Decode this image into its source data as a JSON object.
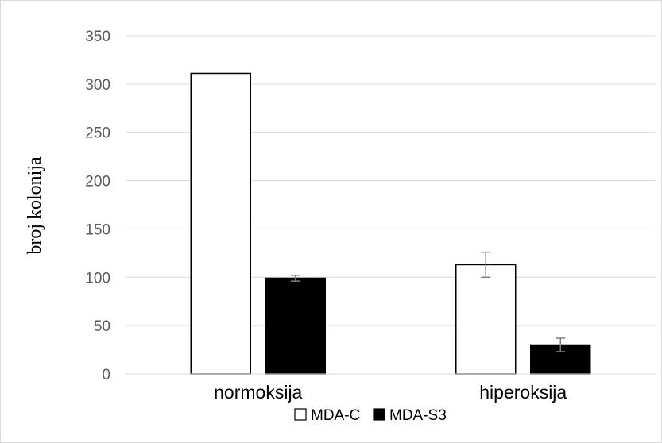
{
  "chart_data": {
    "type": "bar",
    "title": "",
    "xlabel": "",
    "ylabel": "broj kolonija",
    "ylim": [
      0,
      350
    ],
    "yticks": [
      0,
      50,
      100,
      150,
      200,
      250,
      300,
      350
    ],
    "grid": true,
    "legend_position": "bottom",
    "categories": [
      "normoksija",
      "hiperoksija"
    ],
    "series": [
      {
        "name": "MDA-C",
        "fill": "#ffffff",
        "stroke": "#000000",
        "values": [
          311,
          113
        ],
        "errors": [
          0,
          13
        ]
      },
      {
        "name": "MDA-S3",
        "fill": "#000000",
        "stroke": "#000000",
        "values": [
          99,
          30
        ],
        "errors": [
          3,
          7
        ]
      }
    ]
  }
}
